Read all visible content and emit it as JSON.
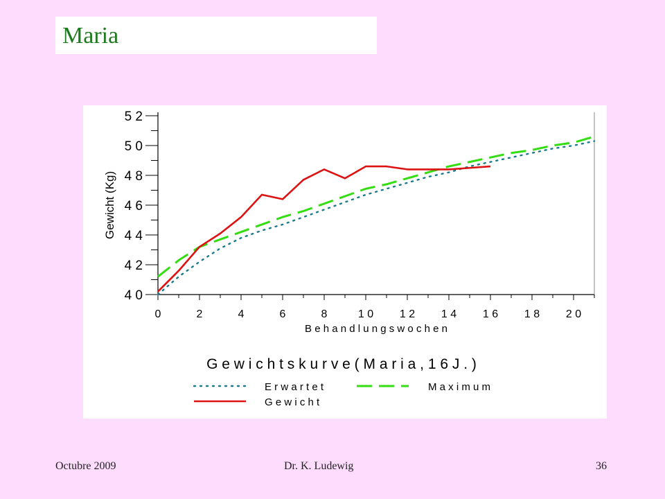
{
  "slide": {
    "title": "Maria",
    "footer_left": "Octubre 2009",
    "footer_center": "Dr. K. Ludewig",
    "footer_right": "36"
  },
  "colors": {
    "background": "#fddcfd",
    "title_text": "#1e7a1e",
    "erwartet": "#1a7a8a",
    "maximum": "#33dd11",
    "gewicht": "#dd1111"
  },
  "chart_data": {
    "type": "line",
    "title": "Gewichtskurve (Maria, 16 J.)",
    "xlabel": "Behandlungswochen",
    "ylabel": "Gewicht (Kg)",
    "xlim": [
      0,
      21
    ],
    "ylim": [
      40,
      52
    ],
    "x_ticks": [
      "0",
      "2",
      "4",
      "6",
      "8",
      "10",
      "12",
      "14",
      "16",
      "18",
      "20"
    ],
    "y_ticks": [
      "40",
      "42",
      "44",
      "46",
      "48",
      "50",
      "52"
    ],
    "legend_position": "bottom",
    "series": [
      {
        "name": "Erwartet",
        "style": "dotted",
        "x": [
          0,
          1,
          2,
          3,
          4,
          5,
          6,
          7,
          8,
          9,
          10,
          11,
          12,
          13,
          14,
          15,
          16,
          17,
          18,
          19,
          20,
          21
        ],
        "y": [
          40.0,
          41.2,
          42.2,
          43.1,
          43.8,
          44.3,
          44.7,
          45.2,
          45.7,
          46.2,
          46.7,
          47.1,
          47.5,
          47.9,
          48.2,
          48.6,
          48.9,
          49.2,
          49.5,
          49.8,
          50.0,
          50.3
        ]
      },
      {
        "name": "Maximum",
        "style": "dashed",
        "x": [
          0,
          1,
          2,
          3,
          4,
          5,
          6,
          7,
          8,
          9,
          10,
          11,
          12,
          13,
          14,
          15,
          16,
          17,
          18,
          19,
          20,
          21
        ],
        "y": [
          41.2,
          42.3,
          43.2,
          43.7,
          44.2,
          44.7,
          45.2,
          45.6,
          46.1,
          46.6,
          47.1,
          47.4,
          47.8,
          48.2,
          48.6,
          48.9,
          49.2,
          49.5,
          49.7,
          50.0,
          50.2,
          50.6
        ]
      },
      {
        "name": "Gewicht",
        "style": "solid",
        "x": [
          0,
          1,
          2,
          3,
          4,
          5,
          6,
          7,
          8,
          9,
          10,
          11,
          12,
          13,
          14,
          15,
          16
        ],
        "y": [
          40.2,
          41.6,
          43.2,
          44.1,
          45.2,
          46.7,
          46.4,
          47.7,
          48.4,
          47.8,
          48.6,
          48.6,
          48.4,
          48.4,
          48.4,
          48.5,
          48.6
        ]
      }
    ]
  }
}
